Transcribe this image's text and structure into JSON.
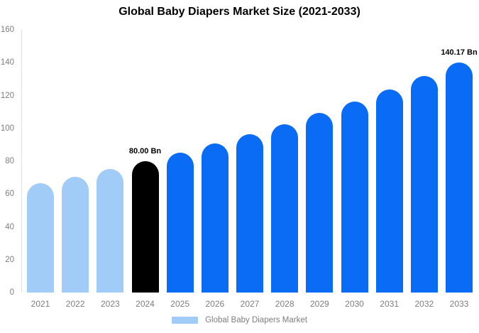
{
  "chart_data": {
    "type": "bar",
    "title": "Global Baby Diapers Market Size (2021-2033)",
    "categories": [
      "2021",
      "2022",
      "2023",
      "2024",
      "2025",
      "2026",
      "2027",
      "2028",
      "2029",
      "2030",
      "2031",
      "2032",
      "2033"
    ],
    "values": [
      66.4,
      70.7,
      75.2,
      80.0,
      85.1,
      90.6,
      96.5,
      102.7,
      109.3,
      116.3,
      123.8,
      131.7,
      140.17
    ],
    "bar_colors": [
      "light_blue",
      "light_blue",
      "light_blue",
      "black",
      "blue",
      "blue",
      "blue",
      "blue",
      "blue",
      "blue",
      "blue",
      "blue",
      "blue"
    ],
    "data_labels": [
      {
        "index": 3,
        "text": "80.00 Bn"
      },
      {
        "index": 12,
        "text": "140.17 Bn"
      }
    ],
    "xlabel": "",
    "ylabel": "",
    "ylim": [
      0,
      160
    ],
    "yticks": [
      0,
      20,
      40,
      60,
      80,
      100,
      120,
      140,
      160
    ],
    "grid": false,
    "legend": {
      "position": "bottom-center",
      "entries": [
        {
          "label": "Global Baby Diapers Market",
          "swatch_color": "light_blue"
        }
      ]
    }
  },
  "colors": {
    "light_blue": "#a2ccf8",
    "blue": "#0a6cf5",
    "black": "#000000",
    "axis_line": "#dcdcdc",
    "tick_text": "#7e7e7e",
    "title_text": "#000000"
  }
}
